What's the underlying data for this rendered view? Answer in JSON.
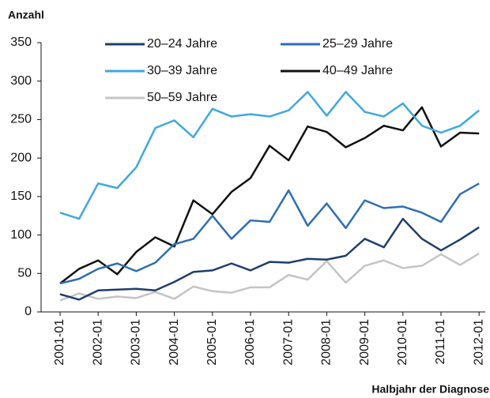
{
  "chart_data": {
    "type": "line",
    "y_label": "Anzahl",
    "x_label": "Halbjahr der Diagnose",
    "categories": [
      "2001-01",
      null,
      "2002-01",
      null,
      "2003-01",
      null,
      "2004-01",
      null,
      "2005-01",
      null,
      "2006-01",
      null,
      "2007-01",
      null,
      "2008-01",
      null,
      "2009-01",
      null,
      "2010-01",
      null,
      "2011-01",
      null,
      "2012-01"
    ],
    "series": [
      {
        "name": "20–24 Jahre",
        "color": "#1f3d6e",
        "values": [
          23,
          16,
          28,
          29,
          30,
          28,
          39,
          52,
          54,
          63,
          54,
          65,
          64,
          69,
          68,
          73,
          95,
          84,
          121,
          95,
          80,
          94,
          110
        ]
      },
      {
        "name": "25–29 Jahre",
        "color": "#2e6db4",
        "values": [
          37,
          43,
          56,
          63,
          53,
          64,
          88,
          95,
          125,
          95,
          119,
          117,
          158,
          112,
          141,
          109,
          145,
          135,
          137,
          129,
          117,
          153,
          167
        ]
      },
      {
        "name": "30–39 Jahre",
        "color": "#3ea8e0",
        "values": [
          129,
          121,
          167,
          161,
          188,
          239,
          249,
          227,
          264,
          254,
          257,
          254,
          262,
          286,
          255,
          286,
          260,
          254,
          271,
          242,
          233,
          242,
          262
        ]
      },
      {
        "name": "40–49 Jahre",
        "color": "#111111",
        "values": [
          37,
          56,
          67,
          49,
          78,
          97,
          85,
          145,
          127,
          156,
          174,
          216,
          197,
          241,
          234,
          214,
          226,
          242,
          236,
          266,
          215,
          233,
          232
        ]
      },
      {
        "name": "50–59 Jahre",
        "color": "#c4c4c4",
        "values": [
          15,
          24,
          17,
          20,
          18,
          26,
          17,
          33,
          27,
          25,
          32,
          32,
          48,
          42,
          66,
          38,
          60,
          67,
          57,
          60,
          75,
          61,
          76
        ]
      }
    ],
    "ylim": [
      0,
      350
    ],
    "yticks": [
      0,
      50,
      100,
      150,
      200,
      250,
      300,
      350
    ],
    "grid": false
  }
}
